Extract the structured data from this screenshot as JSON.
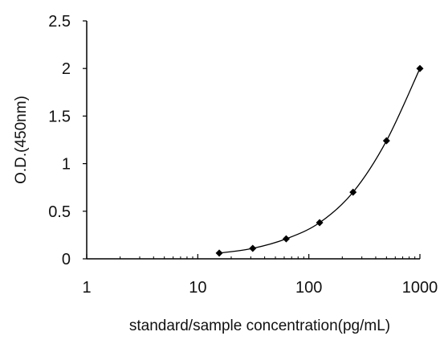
{
  "chart_data": {
    "type": "line",
    "title": "",
    "xlabel": "standard/sample concentration(pg/mL)",
    "ylabel": "O.D.(450nm)",
    "xscale": "log",
    "xlim": [
      1,
      1000
    ],
    "ylim": [
      0,
      2.5
    ],
    "x_ticks": [
      "1",
      "10",
      "100",
      "1000"
    ],
    "y_ticks": [
      "0",
      "0.5",
      "1",
      "1.5",
      "2",
      "2.5"
    ],
    "grid": false,
    "legend": "none",
    "series": [
      {
        "x": [
          15.6,
          31.25,
          62.5,
          125,
          250,
          500,
          1000
        ],
        "y": [
          0.06,
          0.11,
          0.21,
          0.38,
          0.7,
          1.24,
          2.0
        ],
        "marker": "diamond",
        "color": "#000000"
      }
    ]
  }
}
